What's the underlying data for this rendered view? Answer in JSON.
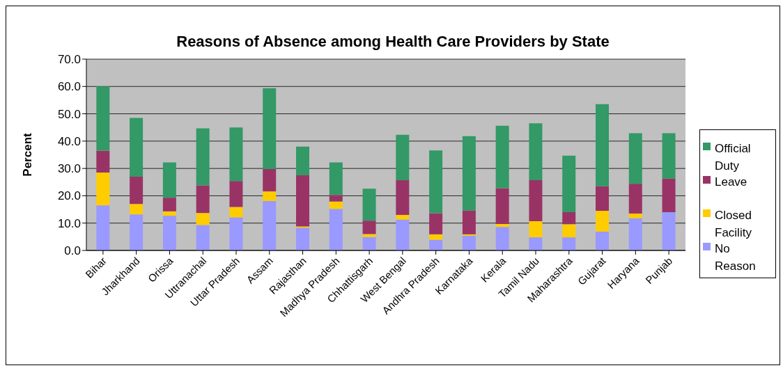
{
  "chart_data": {
    "type": "bar",
    "title": "Reasons of Absence among Health Care Providers by State",
    "ylabel": "Percent",
    "categories": [
      "Bihar",
      "Jharkhand",
      "Orissa",
      "Uttranachal",
      "Uttar Pradesh",
      "Assam",
      "Rajasthan",
      "Madhya Pradesh",
      "Chhattisgarh",
      "West Bengal",
      "Andhra Pradesh",
      "Karnataka",
      "Kerala",
      "Tamil Nadu",
      "Maharashtra",
      "Gujarat",
      "Haryana",
      "Punjab"
    ],
    "stacked": true,
    "series": [
      {
        "name": "No Reason",
        "color": "#9999ff",
        "values": [
          16.5,
          13.2,
          12.7,
          9.3,
          12.1,
          18.1,
          8.3,
          15.2,
          4.9,
          11.3,
          3.9,
          5.4,
          8.6,
          4.8,
          4.8,
          6.9,
          11.8,
          14.0
        ]
      },
      {
        "name": "Closed Facility",
        "color": "#ffcc00",
        "values": [
          12.0,
          3.8,
          1.6,
          4.4,
          3.8,
          3.5,
          0.5,
          2.7,
          1.1,
          1.7,
          2.0,
          0.5,
          1.1,
          5.9,
          4.8,
          7.6,
          1.7,
          0.0
        ]
      },
      {
        "name": "Leave",
        "color": "#993366",
        "values": [
          8.0,
          10.0,
          5.0,
          10.1,
          9.5,
          8.2,
          18.7,
          2.4,
          4.9,
          12.7,
          7.7,
          8.7,
          13.1,
          15.0,
          4.4,
          9.0,
          10.9,
          12.3
        ]
      },
      {
        "name": "Official Duty",
        "color": "#339966",
        "values": [
          23.5,
          21.5,
          12.9,
          20.9,
          19.6,
          29.6,
          10.5,
          11.9,
          11.7,
          16.6,
          23.0,
          27.2,
          22.8,
          20.8,
          20.7,
          30.0,
          18.5,
          16.6
        ]
      }
    ],
    "ylim": [
      0,
      70
    ],
    "yticks": [
      {
        "value": 0,
        "label": "0.0"
      },
      {
        "value": 10,
        "label": "10.0"
      },
      {
        "value": 20,
        "label": "20.0"
      },
      {
        "value": 30,
        "label": "30.0"
      },
      {
        "value": 40,
        "label": "40.0"
      },
      {
        "value": 50,
        "label": "50.0"
      },
      {
        "value": 60,
        "label": "60.0"
      },
      {
        "value": 70,
        "label": "70.0"
      }
    ],
    "grid": "y",
    "legend": "right"
  }
}
